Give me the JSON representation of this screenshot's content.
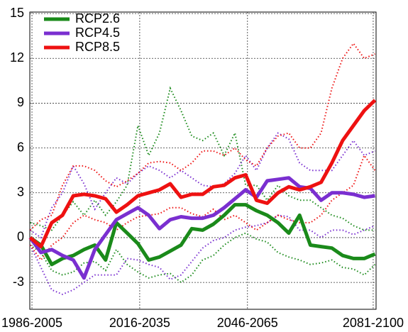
{
  "chart_data": {
    "type": "line",
    "x": [
      1995,
      1998,
      2001,
      2004,
      2007,
      2010,
      2013,
      2016,
      2019,
      2022,
      2025,
      2028,
      2031,
      2034,
      2037,
      2040,
      2043,
      2046,
      2049,
      2052,
      2055,
      2058,
      2061,
      2064,
      2067,
      2070,
      2073,
      2076,
      2079,
      2082,
      2085,
      2088,
      2091
    ],
    "xlim": [
      1994.9,
      2091.3
    ],
    "xticks": [
      {
        "value": 1995.5,
        "label": "1986-2005"
      },
      {
        "value": 2025.5,
        "label": "2016-2035"
      },
      {
        "value": 2055.5,
        "label": "2046-2065"
      },
      {
        "value": 2090.5,
        "label": "2081-2100"
      }
    ],
    "ylim": [
      -4.8,
      15.1
    ],
    "yticks": [
      -3,
      0,
      3,
      6,
      9,
      12,
      15
    ],
    "grid": true,
    "legend": "upper-left",
    "series": [
      {
        "name": "RCP2.6",
        "color": "#1a8a1a",
        "values": [
          0,
          -0.5,
          -1.8,
          -1.4,
          -1.2,
          -0.8,
          -0.5,
          -1.5,
          1,
          0.3,
          -0.4,
          -1.5,
          -1.3,
          -0.9,
          -0.5,
          0.6,
          0.5,
          0.9,
          1.5,
          2.2,
          2.2,
          1.8,
          1.5,
          1,
          0.3,
          1.5,
          -0.5,
          -0.6,
          -0.7,
          -1.2,
          -1.4,
          -1.4,
          -1.1
        ],
        "upper": [
          1,
          0.8,
          0.5,
          1.5,
          2.4,
          1.5,
          2.5,
          1.5,
          2.4,
          3.5,
          7.5,
          5.5,
          7,
          10,
          8.5,
          6.8,
          6.5,
          7,
          5.5,
          7,
          3.5,
          3.5,
          2.5,
          3.5,
          2.8,
          2.5,
          2.5,
          2,
          1.5,
          1.3,
          0.8,
          0.5,
          0.5
        ],
        "lower": [
          -0.5,
          -1,
          -2.2,
          -2.5,
          -2.3,
          -1.7,
          -1.6,
          -2.2,
          -0.8,
          -1.8,
          -2.3,
          -2.7,
          -2.5,
          -2.4,
          -3,
          -2.5,
          -1.5,
          -1.2,
          -0.5,
          0,
          0.3,
          -0.1,
          -0.3,
          -1,
          -1.3,
          -1.5,
          -1.8,
          -1.7,
          -1.5,
          -2,
          -2.1,
          -2.5,
          -1.8
        ]
      },
      {
        "name": "RCP4.5",
        "color": "#7a2fd0",
        "values": [
          0,
          -1,
          -0.8,
          -1.2,
          -1.5,
          -2.7,
          -0.8,
          0.2,
          1.2,
          1.6,
          2,
          1.5,
          0.6,
          1.2,
          1.4,
          1.3,
          1.3,
          1.5,
          2,
          2.6,
          3.2,
          2.7,
          3.8,
          3.9,
          4,
          3.4,
          3.3,
          2.5,
          3,
          3,
          2.9,
          2.7,
          2.8
        ],
        "upper": [
          0.5,
          0,
          2,
          3,
          4.8,
          3.6,
          1.9,
          3,
          4,
          3.6,
          4.3,
          4.8,
          4.5,
          4,
          4.5,
          4,
          3.5,
          3.4,
          3.6,
          4.3,
          5.5,
          4.5,
          6,
          7,
          6.6,
          5,
          4.5,
          4.5,
          4.5,
          5.5,
          6.5,
          5.5,
          5.8
        ],
        "lower": [
          -0.5,
          -2,
          -3.5,
          -3.8,
          -3.5,
          -3,
          -2.5,
          -2.5,
          -2.5,
          -1.4,
          -1.5,
          -1.8,
          -2,
          -2.8,
          -2.5,
          -1.6,
          -0.7,
          -0.2,
          0,
          0.5,
          0.7,
          0.8,
          1,
          1.5,
          1.4,
          0.5,
          0.5,
          0,
          0.5,
          0.5,
          0.2,
          0.5,
          0.8
        ]
      },
      {
        "name": "RCP8.5",
        "color": "#ee1111",
        "values": [
          0,
          -0.6,
          1,
          1.5,
          2.8,
          2.9,
          2.8,
          2.6,
          1.7,
          2.2,
          2.8,
          3,
          3.2,
          3.6,
          2.7,
          2.9,
          2.9,
          3.4,
          3.5,
          4,
          4.2,
          2.5,
          2.3,
          3,
          3.4,
          3.2,
          3.4,
          3.7,
          5,
          6.5,
          7.5,
          8.5,
          9.2
        ],
        "upper": [
          0.5,
          1.2,
          1.5,
          3.5,
          4.8,
          4.8,
          4.5,
          3.8,
          3.4,
          3.8,
          4.3,
          5,
          5.1,
          5,
          4.5,
          5,
          5.8,
          5.8,
          5.5,
          6,
          5.2,
          4.8,
          6,
          6.8,
          7,
          6,
          6,
          7,
          10,
          12,
          13,
          12,
          12.3
        ],
        "lower": [
          -0.5,
          -1.5,
          -0.5,
          0,
          1,
          1.5,
          1.2,
          1,
          0.5,
          1,
          1.4,
          1.5,
          1.6,
          2,
          2,
          1.6,
          1.4,
          1.9,
          1.2,
          1.5,
          1,
          0.5,
          1,
          1.5,
          1.2,
          1,
          1,
          1.5,
          2.5,
          3,
          3.5,
          5.5,
          4.5
        ]
      }
    ]
  }
}
